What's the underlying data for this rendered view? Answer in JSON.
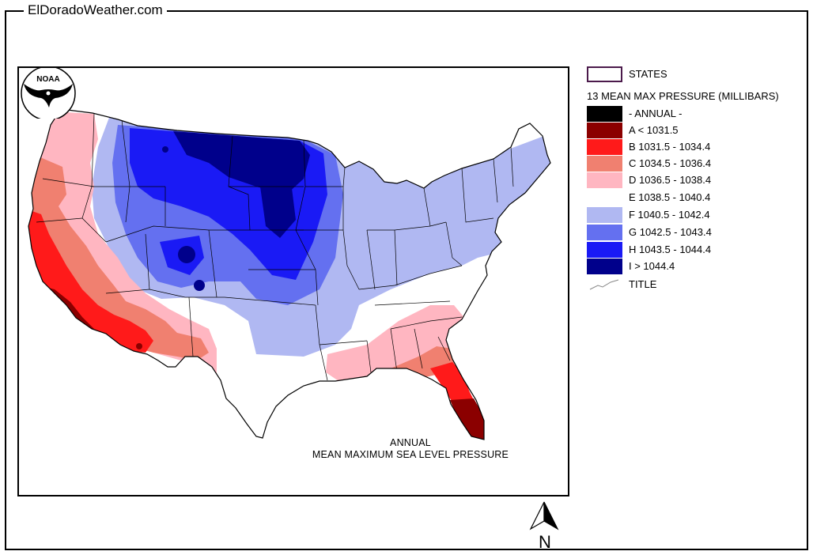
{
  "header": {
    "site_title": "ElDoradoWeather.com"
  },
  "map": {
    "caption_line1": "ANNUAL",
    "caption_line2": "MEAN MAXIMUM SEA LEVEL PRESSURE",
    "logo_text": "NOAA",
    "north_label": "N",
    "region": "Contiguous United States"
  },
  "legend": {
    "states_label": "STATES",
    "layer_title": "13 MEAN MAX PRESSURE (MILLIBARS)",
    "title_label": "TITLE",
    "classes": [
      {
        "label": "- ANNUAL -",
        "color": "#000000"
      },
      {
        "label": "A < 1031.5",
        "color": "#8b0000"
      },
      {
        "label": "B 1031.5 - 1034.4",
        "color": "#ff1a1a"
      },
      {
        "label": "C 1034.5 - 1036.4",
        "color": "#f08070"
      },
      {
        "label": "D 1036.5 - 1038.4",
        "color": "#ffb6c1"
      },
      {
        "label": "E 1038.5 - 1040.4",
        "color": "#ffffff"
      },
      {
        "label": "F 1040.5 - 1042.4",
        "color": "#b0b8f2"
      },
      {
        "label": "G 1042.5 - 1043.4",
        "color": "#6470f0"
      },
      {
        "label": "H 1043.5 - 1044.4",
        "color": "#1a1af5"
      },
      {
        "label": "I > 1044.4",
        "color": "#00008b"
      }
    ]
  }
}
